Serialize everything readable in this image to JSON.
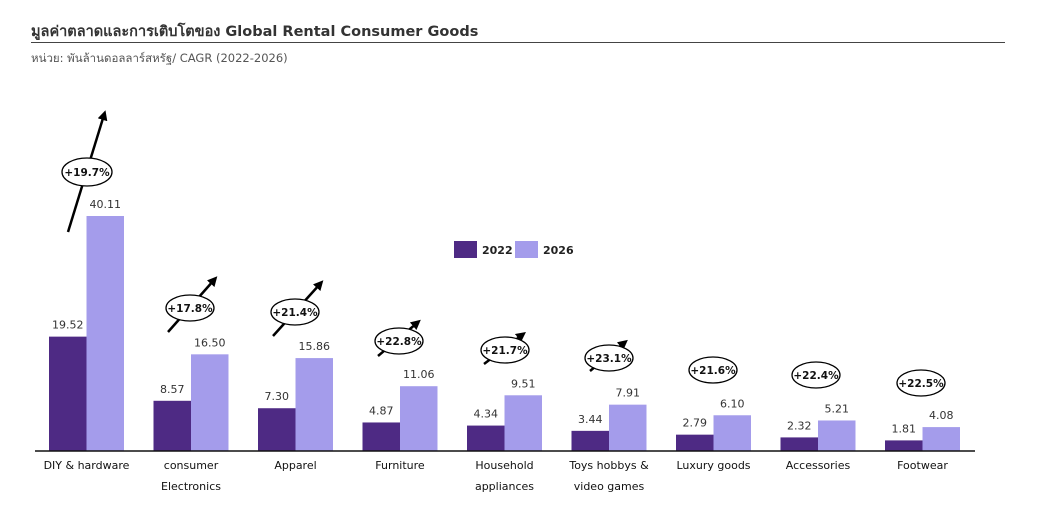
{
  "header": {
    "title": "มูลค่าตลาดและการเติบโตของ Global Rental Consumer Goods",
    "subtitle": "หน่วย:  พันล้านดอลลาร์สหรัฐ/ CAGR (2022-2026)"
  },
  "chart_data": {
    "type": "bar",
    "title": "มูลค่าตลาดและการเติบโตของ Global Rental Consumer Goods",
    "subtitle": "หน่วย: พันล้านดอลลาร์สหรัฐ/ CAGR (2022-2026)",
    "xlabel": "",
    "ylabel": "",
    "ylim": [
      0,
      40.11
    ],
    "grid": false,
    "legend_position": "center",
    "categories": [
      [
        "DIY & hardware"
      ],
      [
        "consumer",
        "Electronics"
      ],
      [
        "Apparel"
      ],
      [
        "Furniture"
      ],
      [
        "Household",
        "appliances"
      ],
      [
        "Toys hobbys &",
        "video games"
      ],
      [
        "Luxury goods"
      ],
      [
        "Accessories"
      ],
      [
        "Footwear"
      ]
    ],
    "series": [
      {
        "name": "2022",
        "color": "#4e2a84",
        "values": [
          19.52,
          8.57,
          7.3,
          4.87,
          4.34,
          3.44,
          2.79,
          2.32,
          1.81
        ],
        "labels": [
          "19.52",
          "8.57",
          "7.30",
          "4.87",
          "4.34",
          "3.44",
          "2.79",
          "2.32",
          "1.81"
        ]
      },
      {
        "name": "2026",
        "color": "#a49ceb",
        "values": [
          40.11,
          16.5,
          15.86,
          11.06,
          9.51,
          7.91,
          6.1,
          5.21,
          4.08
        ],
        "labels": [
          "40.11",
          "16.50",
          "15.86",
          "11.06",
          "9.51",
          "7.91",
          "6.10",
          "5.21",
          "4.08"
        ]
      }
    ],
    "annotations": [
      "+19.7%",
      "+17.8%",
      "+21.4%",
      "+22.8%",
      "+21.7%",
      "+23.1%",
      "+21.6%",
      "+22.4%",
      "+22.5%"
    ]
  }
}
